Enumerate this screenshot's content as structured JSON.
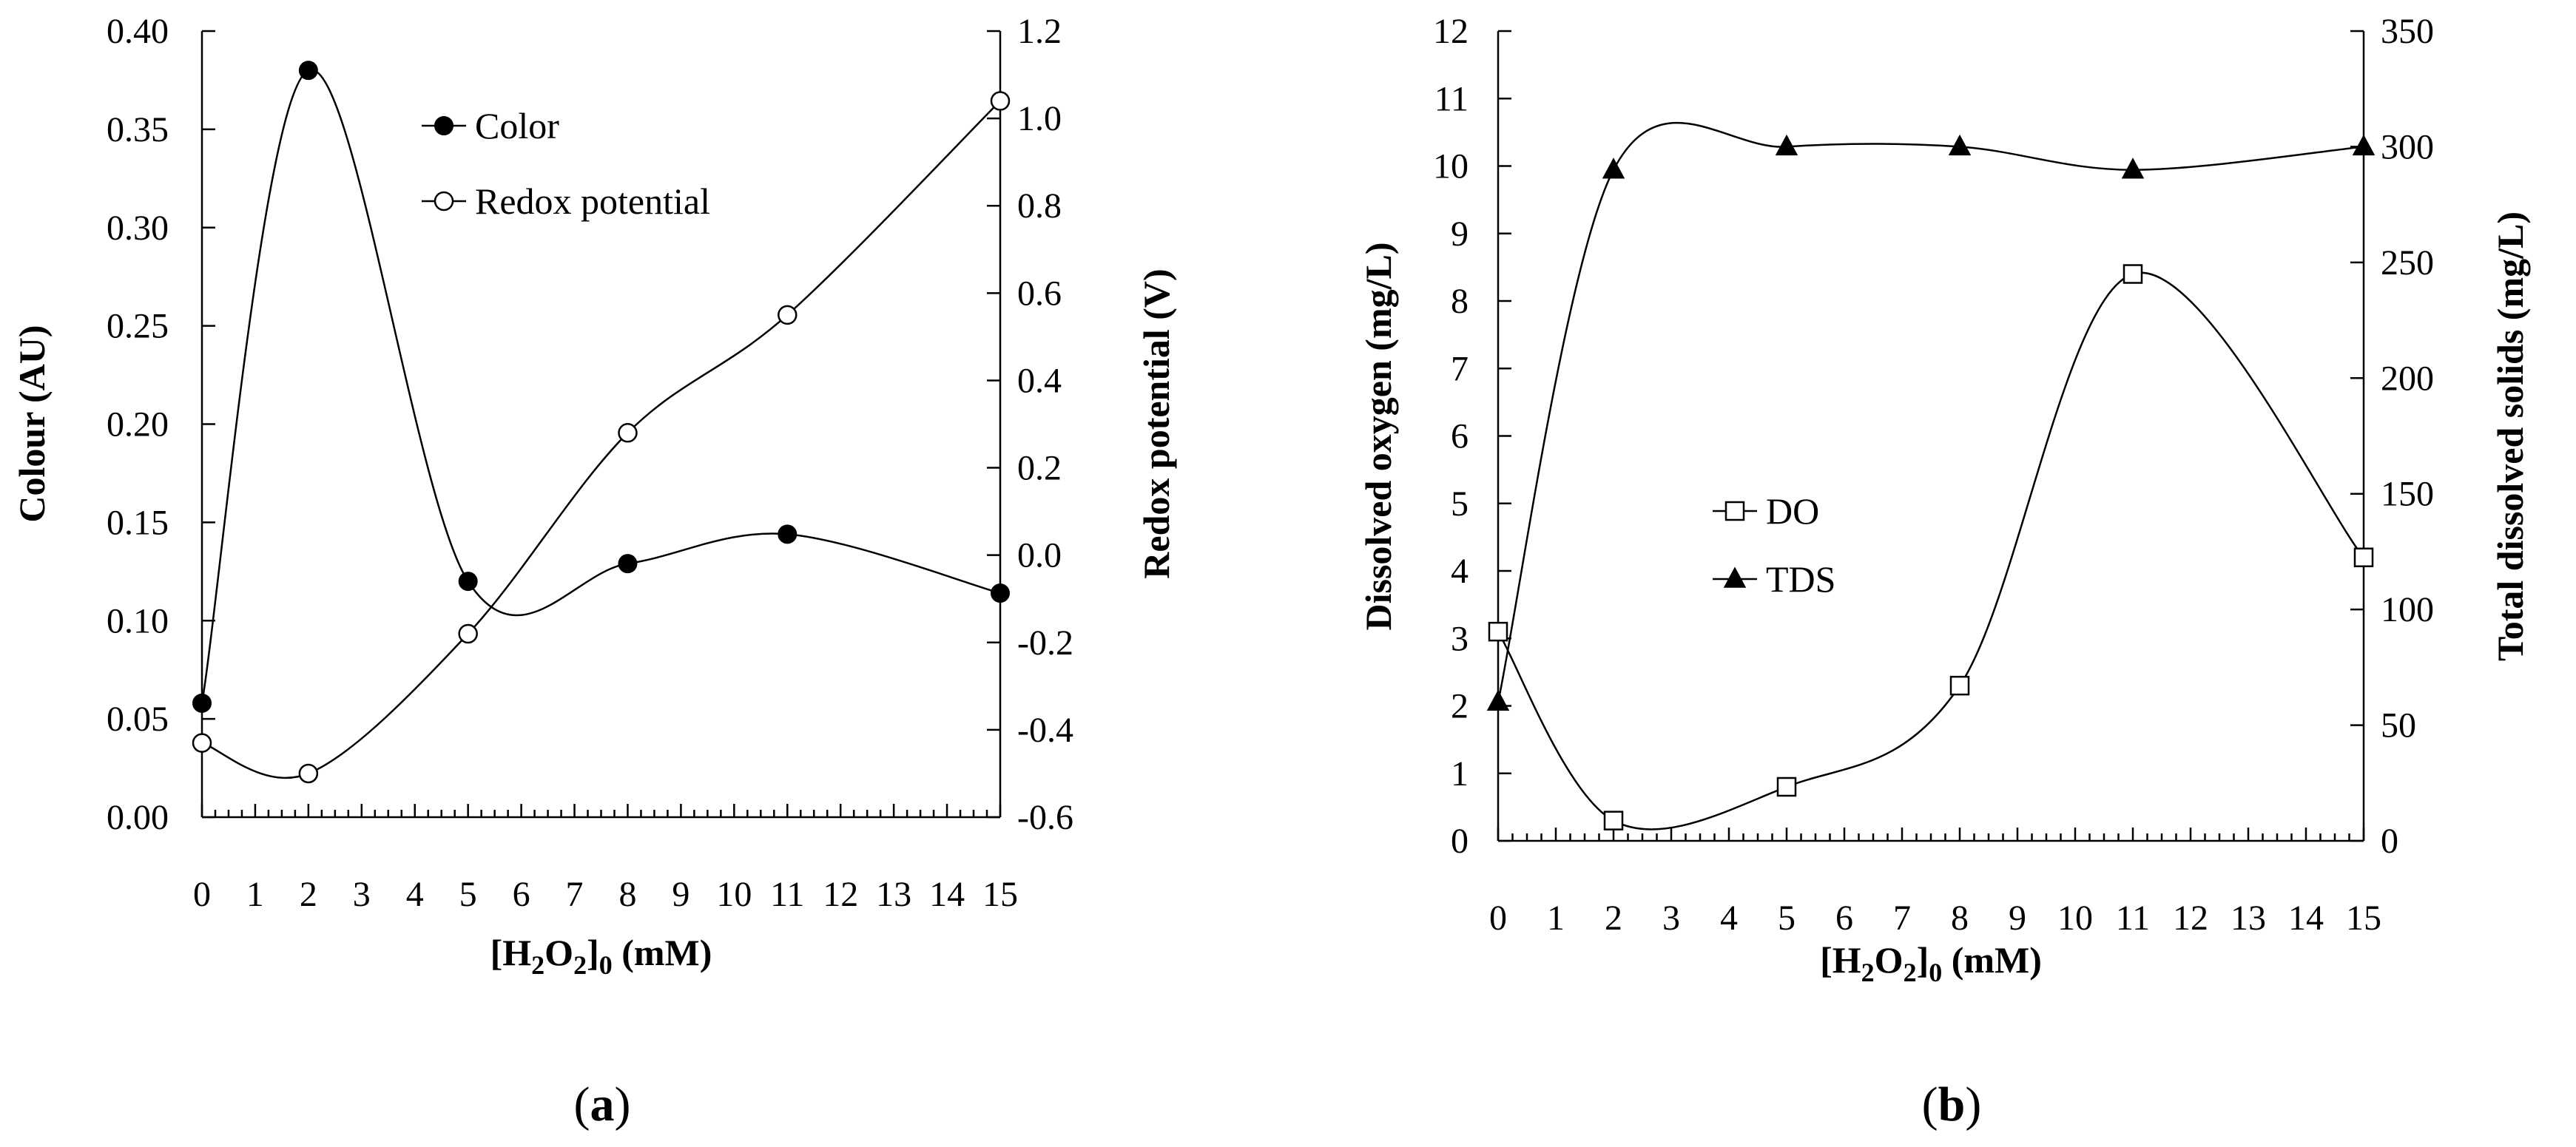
{
  "chart_data": [
    {
      "panel": "a",
      "type": "line",
      "caption_letter": "a",
      "caption_open": "(",
      "caption_close": ")",
      "x": [
        0,
        2,
        5,
        8,
        11,
        15
      ],
      "x_ticks": [
        0,
        1,
        2,
        3,
        4,
        5,
        6,
        7,
        8,
        9,
        10,
        11,
        12,
        13,
        14,
        15
      ],
      "xlim": [
        0,
        15
      ],
      "xlabel": {
        "open": "[H",
        "sub1": "2",
        "mid": "O",
        "sub2": "2",
        "close": "]",
        "sub3": "0",
        "unit": " (mM)"
      },
      "ylabel_left": "Colour (AU)",
      "ylim_left": [
        0,
        0.4
      ],
      "yticks_left": [
        "0.00",
        "0.05",
        "0.10",
        "0.15",
        "0.20",
        "0.25",
        "0.30",
        "0.35",
        "0.40"
      ],
      "ylabel_right": "Redox potential (V)",
      "ylim_right": [
        -0.6,
        1.2
      ],
      "yticks_right": [
        "-0.6",
        "-0.4",
        "-0.2",
        "0.0",
        "0.2",
        "0.4",
        "0.6",
        "0.8",
        "1.0",
        "1.2"
      ],
      "series": [
        {
          "name": "Color",
          "axis": "left",
          "marker": "filled-circle",
          "values": [
            0.058,
            0.38,
            0.12,
            0.129,
            0.144,
            0.114
          ]
        },
        {
          "name": "Redox potential",
          "axis": "right",
          "marker": "open-circle",
          "values": [
            -0.43,
            -0.5,
            -0.18,
            0.28,
            0.55,
            1.04
          ]
        }
      ],
      "legend": [
        "Color",
        "Redox potential"
      ]
    },
    {
      "panel": "b",
      "type": "line",
      "caption_letter": "b",
      "caption_open": "(",
      "caption_close": ")",
      "x": [
        0,
        2,
        5,
        8,
        11,
        15
      ],
      "x_ticks": [
        0,
        1,
        2,
        3,
        4,
        5,
        6,
        7,
        8,
        9,
        10,
        11,
        12,
        13,
        14,
        15
      ],
      "xlim": [
        0,
        15
      ],
      "xlabel": {
        "open": "[H",
        "sub1": "2",
        "mid": "O",
        "sub2": "2",
        "close": "]",
        "sub3": "0",
        "unit": " (mM)"
      },
      "ylabel_left": "Dissolved oxygen (mg/L)",
      "ylim_left": [
        0,
        12
      ],
      "yticks_left": [
        "0",
        "1",
        "2",
        "3",
        "4",
        "5",
        "6",
        "7",
        "8",
        "9",
        "10",
        "11",
        "12"
      ],
      "ylabel_right": "Total dissolved solids (mg/L)",
      "ylim_right": [
        0,
        350
      ],
      "yticks_right": [
        "0",
        "50",
        "100",
        "150",
        "200",
        "250",
        "300",
        "350"
      ],
      "series": [
        {
          "name": "DO",
          "axis": "left",
          "marker": "open-square",
          "values": [
            3.1,
            0.3,
            0.8,
            2.3,
            8.4,
            4.2
          ]
        },
        {
          "name": "TDS",
          "axis": "right",
          "marker": "filled-triangle",
          "values": [
            60,
            290,
            300,
            300,
            290,
            300
          ]
        }
      ],
      "legend": [
        "DO",
        "TDS"
      ]
    }
  ]
}
